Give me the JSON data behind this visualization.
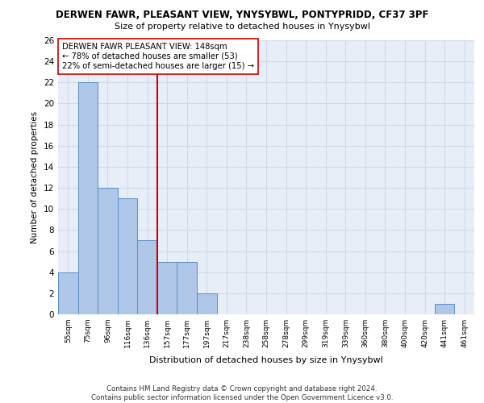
{
  "title1": "DERWEN FAWR, PLEASANT VIEW, YNYSYBWL, PONTYPRIDD, CF37 3PF",
  "title2": "Size of property relative to detached houses in Ynysybwl",
  "xlabel": "Distribution of detached houses by size in Ynysybwl",
  "ylabel": "Number of detached properties",
  "categories": [
    "55sqm",
    "75sqm",
    "96sqm",
    "116sqm",
    "136sqm",
    "157sqm",
    "177sqm",
    "197sqm",
    "217sqm",
    "238sqm",
    "258sqm",
    "278sqm",
    "299sqm",
    "319sqm",
    "339sqm",
    "360sqm",
    "380sqm",
    "400sqm",
    "420sqm",
    "441sqm",
    "461sqm"
  ],
  "values": [
    4,
    22,
    12,
    11,
    7,
    5,
    5,
    2,
    0,
    0,
    0,
    0,
    0,
    0,
    0,
    0,
    0,
    0,
    0,
    1,
    0
  ],
  "bar_color": "#aec6e8",
  "bar_edge_color": "#5a8fc2",
  "vline_x": 4.5,
  "vline_color": "#cc0000",
  "annotation_text": "DERWEN FAWR PLEASANT VIEW: 148sqm\n← 78% of detached houses are smaller (53)\n22% of semi-detached houses are larger (15) →",
  "annotation_box_color": "#ffffff",
  "annotation_box_edge": "#cc0000",
  "ylim": [
    0,
    26
  ],
  "yticks": [
    0,
    2,
    4,
    6,
    8,
    10,
    12,
    14,
    16,
    18,
    20,
    22,
    24,
    26
  ],
  "footnote": "Contains HM Land Registry data © Crown copyright and database right 2024.\nContains public sector information licensed under the Open Government Licence v3.0.",
  "grid_color": "#d0d8e8",
  "background_color": "#e8eef8"
}
